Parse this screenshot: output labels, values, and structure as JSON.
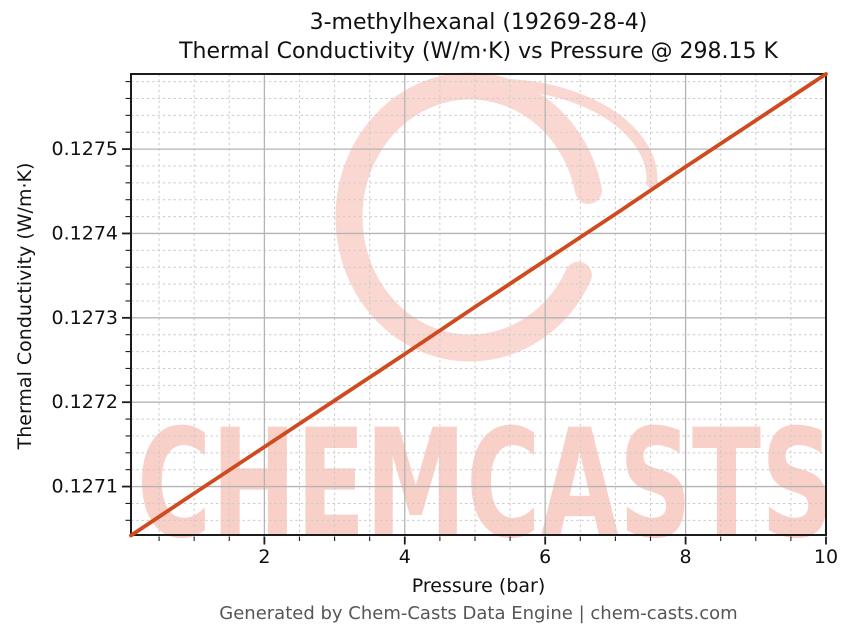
{
  "title": {
    "line1": "3-methylhexanal (19269-28-4)",
    "line2": "Thermal Conductivity (W/m·K) vs Pressure @ 298.15 K"
  },
  "footer": {
    "text": "Generated by Chem-Casts Data Engine | chem-casts.com"
  },
  "watermark": {
    "text": "CHEMCASTS"
  },
  "colors": {
    "line": "#d04a1f",
    "major_grid": "#b4b4b4",
    "minor_grid": "#cccccc",
    "spine": "#1c1c1c",
    "tick_label": "#111111",
    "footer_text": "#565656",
    "watermark_text": "#f8d0c7",
    "watermark_ring": "#fad8d1"
  },
  "chart_data": {
    "type": "line",
    "title": "3-methylhexanal (19269-28-4) — Thermal Conductivity (W/m·K) vs Pressure @ 298.15 K",
    "compound": "3-methylhexanal",
    "cas_number": "19269-28-4",
    "temperature_K": 298.15,
    "xlabel": "Pressure (bar)",
    "ylabel": "Thermal Conductivity (W/m·K)",
    "xlim": [
      0.1,
      10
    ],
    "ylim": [
      0.127042,
      0.127589
    ],
    "x_ticks": [
      2,
      4,
      6,
      8,
      10
    ],
    "x_tick_labels": [
      "2",
      "4",
      "6",
      "8",
      "10"
    ],
    "y_ticks": [
      0.1271,
      0.1272,
      0.1273,
      0.1274,
      0.1275
    ],
    "y_tick_labels": [
      "0.1271",
      "0.1272",
      "0.1273",
      "0.1274",
      "0.1275"
    ],
    "x_minor_step": 0.5,
    "y_minor_step": 2e-05,
    "grid": true,
    "legend": "none",
    "series": [
      {
        "name": "Thermal Conductivity",
        "x": [
          0.1,
          1,
          2,
          3,
          4,
          5,
          6,
          7,
          8,
          9,
          10
        ],
        "y": [
          0.127042,
          0.127092,
          0.127147,
          0.127202,
          0.127257,
          0.127313,
          0.127368,
          0.127423,
          0.127479,
          0.127534,
          0.127589
        ]
      }
    ]
  }
}
